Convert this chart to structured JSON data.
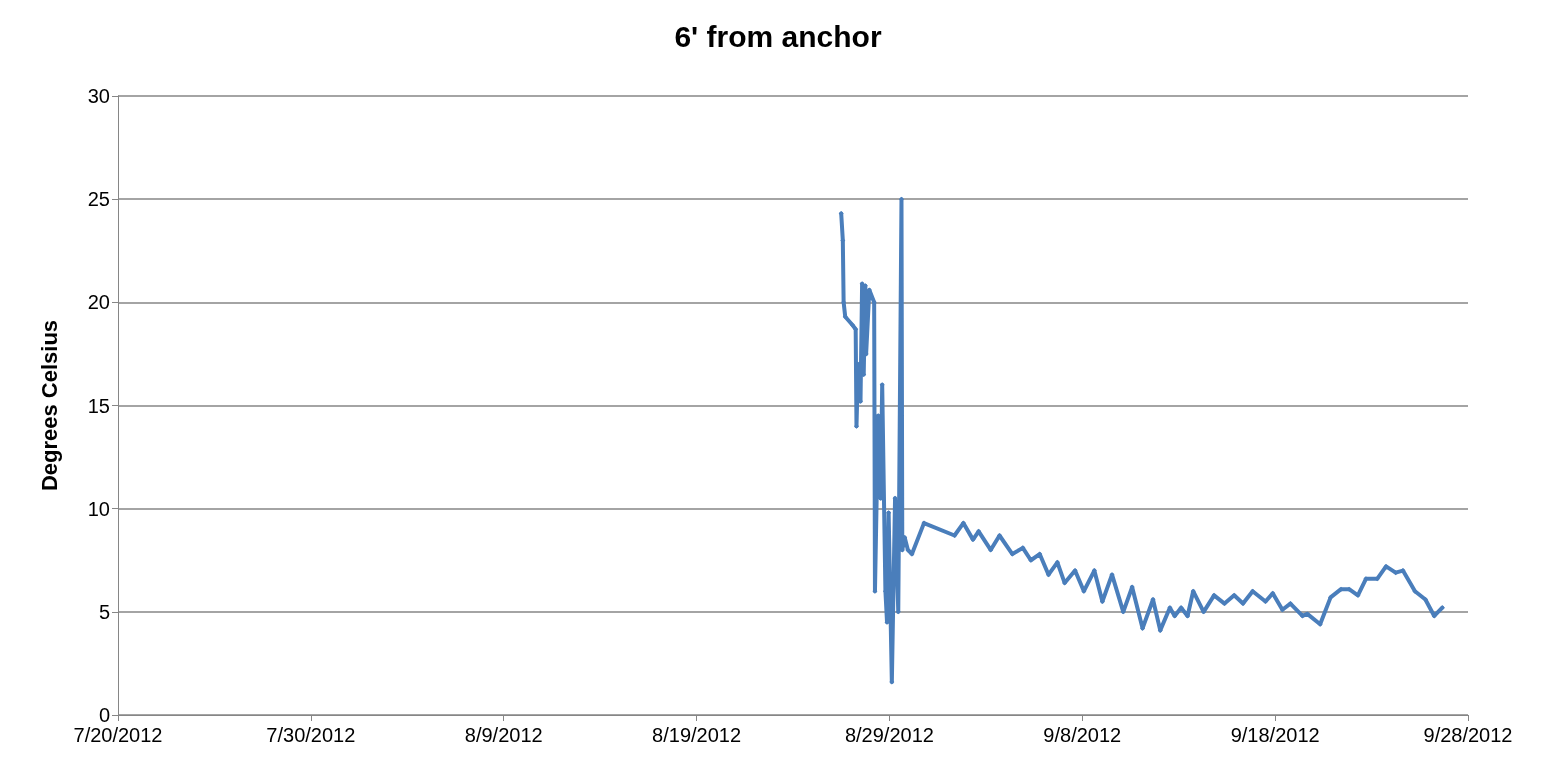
{
  "chart_data": {
    "type": "line",
    "title": "6' from anchor",
    "ylabel": "Degrees Celsius",
    "x": [
      "2012-08-26T12:00",
      "2012-08-26T14:00",
      "2012-08-26T15:00",
      "2012-08-26T17:00",
      "2012-08-27T02:00",
      "2012-08-27T06:00",
      "2012-08-27T07:00",
      "2012-08-27T09:00",
      "2012-08-27T12:00",
      "2012-08-27T14:00",
      "2012-08-27T16:00",
      "2012-08-27T18:00",
      "2012-08-27T19:00",
      "2012-08-27T23:00",
      "2012-08-28T05:00",
      "2012-08-28T06:00",
      "2012-08-28T10:00",
      "2012-08-28T13:00",
      "2012-08-28T15:00",
      "2012-08-28T19:00",
      "2012-08-28T21:00",
      "2012-08-28T23:00",
      "2012-08-29T03:00",
      "2012-08-29T07:00",
      "2012-08-29T11:00",
      "2012-08-29T15:00",
      "2012-08-29T16:00",
      "2012-08-29T19:00",
      "2012-08-29T23:00",
      "2012-08-30T04:00",
      "2012-08-30T19:00",
      "2012-09-01T09:00",
      "2012-09-01T20:00",
      "2012-09-02T08:00",
      "2012-09-02T15:00",
      "2012-09-03T06:00",
      "2012-09-03T17:00",
      "2012-09-04T09:00",
      "2012-09-04T22:00",
      "2012-09-05T08:00",
      "2012-09-05T19:00",
      "2012-09-06T06:00",
      "2012-09-06T17:00",
      "2012-09-07T02:00",
      "2012-09-07T15:00",
      "2012-09-08T02:00",
      "2012-09-08T15:00",
      "2012-09-09T01:00",
      "2012-09-09T13:00",
      "2012-09-10T03:00",
      "2012-09-10T14:00",
      "2012-09-11T03:00",
      "2012-09-11T16:00",
      "2012-09-12T01:00",
      "2012-09-12T13:00",
      "2012-09-12T19:00",
      "2012-09-13T03:00",
      "2012-09-13T11:00",
      "2012-09-13T18:00",
      "2012-09-14T07:00",
      "2012-09-14T20:00",
      "2012-09-15T09:00",
      "2012-09-15T21:00",
      "2012-09-16T08:00",
      "2012-09-16T20:00",
      "2012-09-17T12:00",
      "2012-09-17T21:00",
      "2012-09-18T09:00",
      "2012-09-18T19:00",
      "2012-09-19T10:00",
      "2012-09-19T16:00",
      "2012-09-20T08:00",
      "2012-09-20T21:00",
      "2012-09-21T10:00",
      "2012-09-21T20:00",
      "2012-09-22T07:00",
      "2012-09-22T17:00",
      "2012-09-23T07:00",
      "2012-09-23T18:00",
      "2012-09-24T06:00",
      "2012-09-24T15:00",
      "2012-09-25T06:00",
      "2012-09-25T19:00",
      "2012-09-26T06:00",
      "2012-09-26T16:00"
    ],
    "series": [
      {
        "color": "#4a7ebb",
        "values": [
          24.3,
          23,
          20,
          19.3,
          18.9,
          18.7,
          14,
          17,
          15.2,
          20.9,
          16.5,
          20.8,
          17.5,
          20.6,
          20,
          6,
          14.5,
          10.5,
          16,
          6,
          4.5,
          9.8,
          1.6,
          10.5,
          5,
          25,
          8,
          8.6,
          8,
          7.8,
          9.3,
          8.7,
          9.3,
          8.5,
          8.9,
          8,
          8.7,
          7.8,
          8.1,
          7.5,
          7.8,
          6.8,
          7.4,
          6.4,
          7,
          6,
          7,
          5.5,
          6.8,
          5,
          6.2,
          4.2,
          5.6,
          4.1,
          5.2,
          4.8,
          5.2,
          4.8,
          6,
          5,
          5.8,
          5.4,
          5.8,
          5.4,
          6,
          5.5,
          5.9,
          5.1,
          5.4,
          4.8,
          4.9,
          4.4,
          5.7,
          6.1,
          6.1,
          5.8,
          6.6,
          6.6,
          7.2,
          6.9,
          7,
          6,
          5.6,
          4.8,
          5.2
        ]
      }
    ],
    "xlim": [
      "2012-07-20",
      "2012-09-28"
    ],
    "xticks": [
      {
        "value": "2012-07-20",
        "label": "7/20/2012"
      },
      {
        "value": "2012-07-30",
        "label": "7/30/2012"
      },
      {
        "value": "2012-08-09",
        "label": "8/9/2012"
      },
      {
        "value": "2012-08-19",
        "label": "8/19/2012"
      },
      {
        "value": "2012-08-29",
        "label": "8/29/2012"
      },
      {
        "value": "2012-09-08",
        "label": "9/8/2012"
      },
      {
        "value": "2012-09-18",
        "label": "9/18/2012"
      },
      {
        "value": "2012-09-28",
        "label": "9/28/2012"
      }
    ],
    "ylim": [
      0,
      30
    ],
    "yticks": [
      0,
      5,
      10,
      15,
      20,
      25,
      30
    ],
    "grid": "y",
    "marker": "diamond",
    "line_style": "solid"
  }
}
